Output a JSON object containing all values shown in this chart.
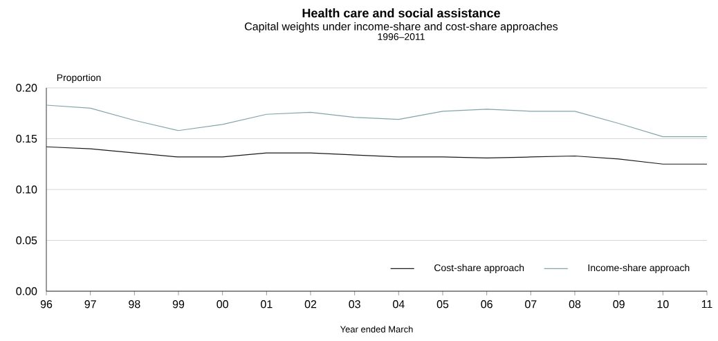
{
  "chart_data": {
    "type": "line",
    "title": "Health care and social assistance",
    "subtitle": "Capital weights under income-share and cost-share approaches",
    "annotations": [
      "1996–2011"
    ],
    "xlabel": "Year ended March",
    "ylabel": "Proportion",
    "categories": [
      "96",
      "97",
      "98",
      "99",
      "00",
      "01",
      "02",
      "03",
      "04",
      "05",
      "06",
      "07",
      "08",
      "09",
      "10",
      "11"
    ],
    "series": [
      {
        "name": "Cost-share approach",
        "color": "#1a1a1a",
        "values": [
          0.142,
          0.14,
          0.136,
          0.132,
          0.132,
          0.136,
          0.136,
          0.134,
          0.132,
          0.132,
          0.131,
          0.132,
          0.133,
          0.13,
          0.125,
          0.125
        ]
      },
      {
        "name": "Income-share approach",
        "color": "#7fa6aa",
        "values": [
          0.183,
          0.18,
          0.168,
          0.158,
          0.164,
          0.174,
          0.176,
          0.171,
          0.169,
          0.177,
          0.179,
          0.177,
          0.177,
          0.165,
          0.152,
          0.152
        ]
      }
    ],
    "ylim": [
      0,
      0.2
    ],
    "yticks": [
      {
        "value": 0,
        "label": "0.00"
      },
      {
        "value": 0.05,
        "label": "0.05"
      },
      {
        "value": 0.1,
        "label": "0.10"
      },
      {
        "value": 0.15,
        "label": "0.15"
      },
      {
        "value": 0.2,
        "label": "0.20"
      }
    ],
    "grid": "y",
    "legend": "bottom right",
    "marker": "none",
    "line_style": "solid"
  }
}
